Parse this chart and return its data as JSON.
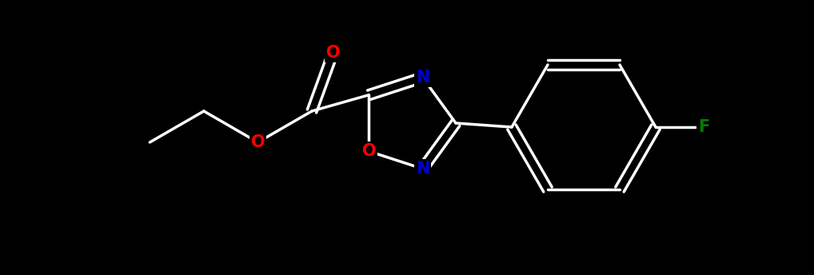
{
  "background_color": "#000000",
  "bond_color": "#ffffff",
  "atom_colors": {
    "O": "#ff0000",
    "N": "#0000cd",
    "F": "#008000",
    "C": "#ffffff"
  },
  "bond_width": 2.5,
  "figsize": [
    10.18,
    3.44
  ],
  "dpi": 100
}
